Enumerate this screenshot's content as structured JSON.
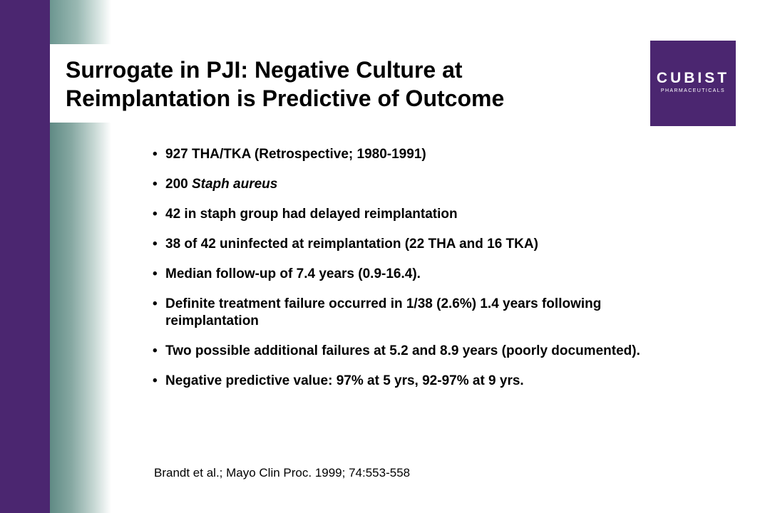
{
  "slide": {
    "title_line1": "Surrogate in PJI: Negative Culture at",
    "title_line2": "Reimplantation is Predictive of Outcome",
    "logo": {
      "name": "CUBIST",
      "subtitle": "PHARMACEUTICALS",
      "color": "#4b2670"
    },
    "bullets": [
      {
        "text": "927 THA/TKA (Retrospective; 1980-1991)"
      },
      {
        "prefix": "200 ",
        "italic": "Staph aureus"
      },
      {
        "text": "42 in staph group had delayed reimplantation"
      },
      {
        "text": "38 of 42 uninfected at reimplantation (22 THA and 16 TKA)"
      },
      {
        "text": "Median follow-up of 7.4 years (0.9-16.4)."
      },
      {
        "text": "Definite treatment failure occurred in 1/38 (2.6%) 1.4 years following reimplantation"
      },
      {
        "text": "Two possible additional failures at 5.2 and 8.9 years (poorly documented)."
      },
      {
        "text": "Negative predictive value: 97% at 5 yrs, 92-97% at 9 yrs."
      }
    ],
    "citation": "Brandt et al.; Mayo Clin Proc. 1999; 74:553-558"
  },
  "colors": {
    "sidebar_purple": "#4b2670",
    "sidebar_teal": "#5f8a84"
  }
}
